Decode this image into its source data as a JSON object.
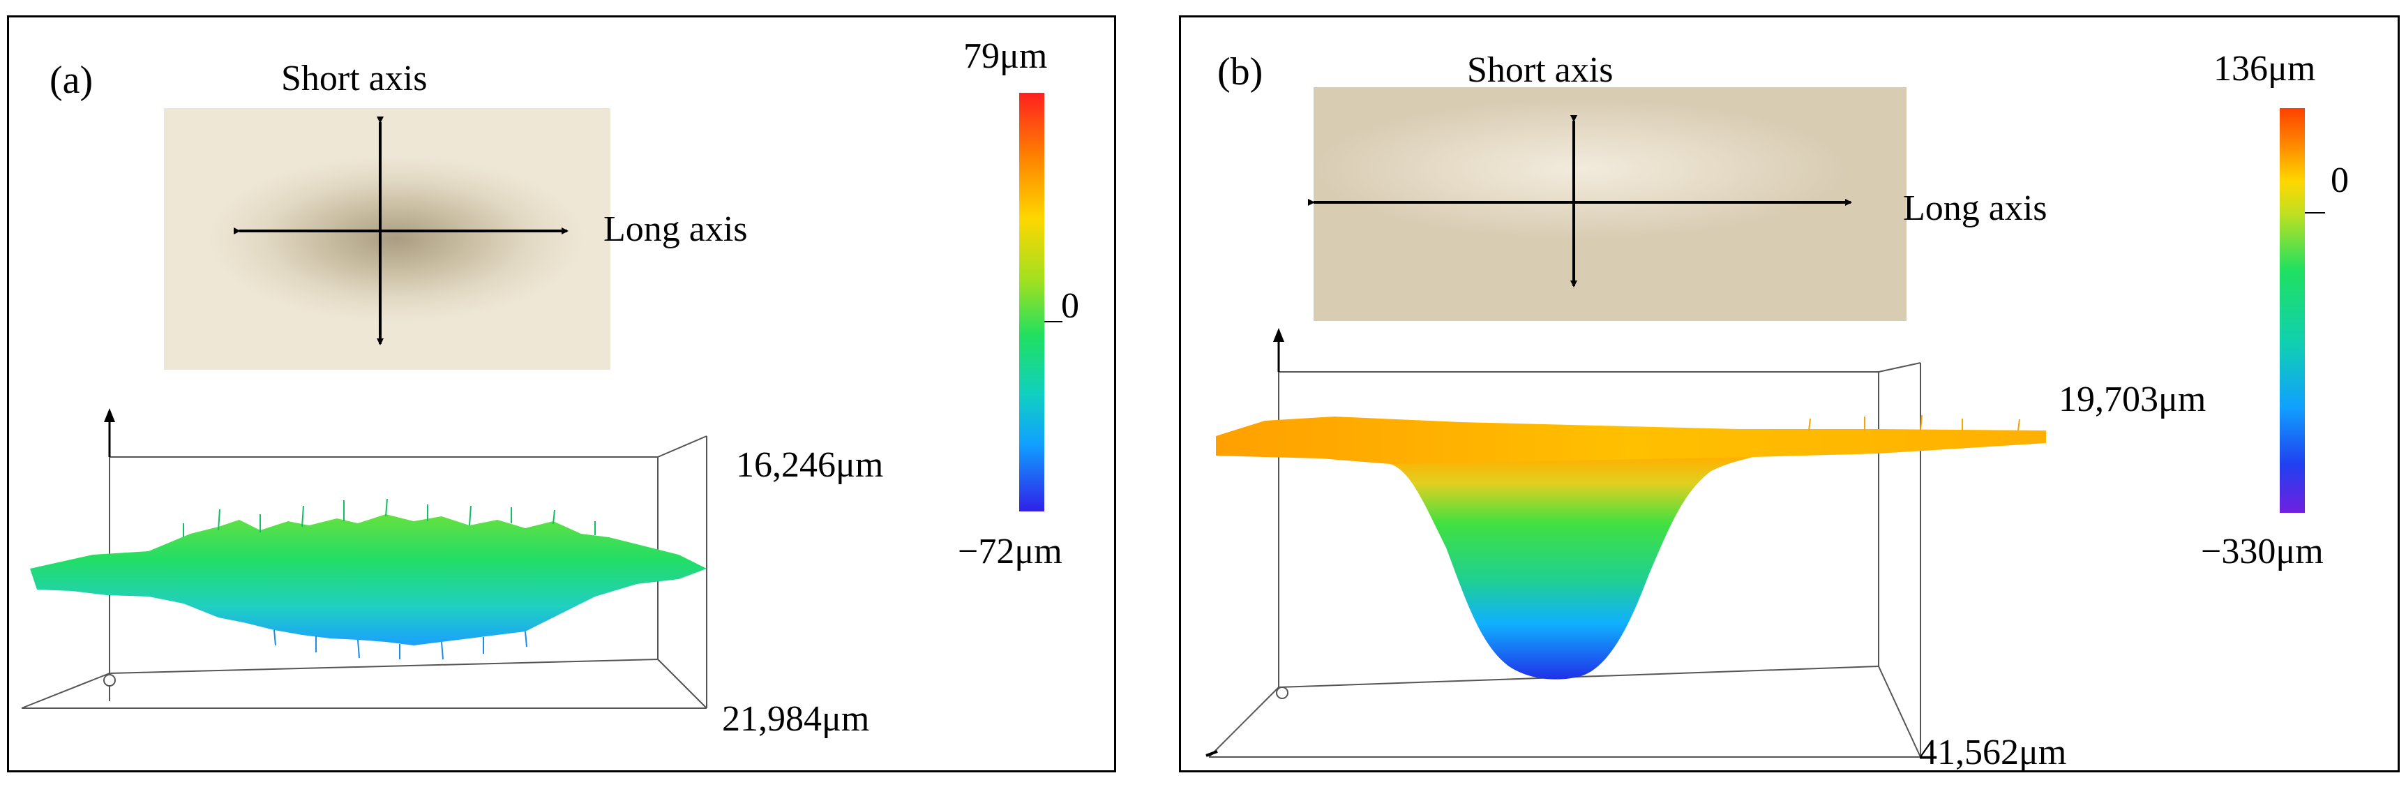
{
  "panels": [
    {
      "label": "(a)",
      "short_axis": "Short axis",
      "long_axis": "Long axis",
      "scale_max": "79μm",
      "scale_zero": "0",
      "scale_min": "−72μm",
      "width_dim": "16,246μm",
      "length_dim": "21,984μm"
    },
    {
      "label": "(b)",
      "short_axis": "Short axis",
      "long_axis": "Long axis",
      "scale_max": "136μm",
      "scale_zero": "0",
      "scale_min": "−330μm",
      "width_dim": "19,703μm",
      "length_dim": "41,562μm"
    }
  ],
  "colors": {
    "photo_light": "#efe7d8",
    "photo_dark_a": "#b8ab90",
    "photo_b": "#ddd0b8",
    "surface_green": "#22dd66",
    "surface_blue": "#1aa0ff",
    "surface_orange": "#ffa500",
    "surface_deep_blue": "#2030e8"
  }
}
